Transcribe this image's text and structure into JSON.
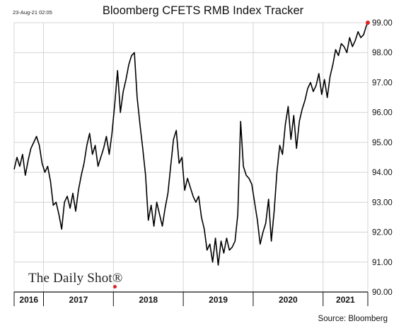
{
  "stamp": "23-Aug-21 02:05",
  "source": "Source: Bloomberg",
  "brand": "The Daily Shot®",
  "colors": {
    "line": "#000000",
    "endpoint": "#e0211f",
    "brand_dot": "#e0211f"
  },
  "chart_data": {
    "type": "line",
    "title": "Bloomberg CFETS RMB Index Tracker",
    "xlabel": "",
    "ylabel": "",
    "ylim": [
      90.0,
      99.0
    ],
    "xlim": [
      2016.58,
      2021.64
    ],
    "yticks": [
      90.0,
      91.0,
      92.0,
      93.0,
      94.0,
      95.0,
      96.0,
      97.0,
      98.0,
      99.0
    ],
    "ytick_labels": [
      "90.00",
      "91.00",
      "92.00",
      "93.00",
      "94.00",
      "95.00",
      "96.00",
      "97.00",
      "98.00",
      "99.00"
    ],
    "xticks": [
      2016.58,
      2017,
      2018,
      2019,
      2020,
      2021,
      2021.64
    ],
    "x_categories": [
      {
        "label": "2016",
        "center": 2016.79
      },
      {
        "label": "2017",
        "center": 2017.5
      },
      {
        "label": "2018",
        "center": 2018.5
      },
      {
        "label": "2019",
        "center": 2019.5
      },
      {
        "label": "2020",
        "center": 2020.5
      },
      {
        "label": "2021",
        "center": 2021.32
      }
    ],
    "grid": true,
    "legend": "none",
    "endpoint": {
      "x": 2021.64,
      "y": 99.0
    },
    "series": [
      {
        "x": [
          2016.58,
          2016.62,
          2016.66,
          2016.7,
          2016.74,
          2016.78,
          2016.82,
          2016.86,
          2016.9,
          2016.94,
          2016.98,
          2017.02,
          2017.06,
          2017.1,
          2017.14,
          2017.18,
          2017.22,
          2017.26,
          2017.3,
          2017.34,
          2017.38,
          2017.42,
          2017.46,
          2017.5,
          2017.54,
          2017.58,
          2017.62,
          2017.66,
          2017.7,
          2017.74,
          2017.78,
          2017.82,
          2017.86,
          2017.9,
          2017.94,
          2017.98,
          2018.02,
          2018.06,
          2018.1,
          2018.14,
          2018.18,
          2018.22,
          2018.26,
          2018.3,
          2018.34,
          2018.38,
          2018.42,
          2018.46,
          2018.5,
          2018.54,
          2018.58,
          2018.62,
          2018.66,
          2018.7,
          2018.74,
          2018.78,
          2018.82,
          2018.86,
          2018.9,
          2018.94,
          2018.98,
          2019.02,
          2019.06,
          2019.1,
          2019.14,
          2019.18,
          2019.22,
          2019.26,
          2019.3,
          2019.34,
          2019.38,
          2019.42,
          2019.46,
          2019.5,
          2019.54,
          2019.58,
          2019.62,
          2019.66,
          2019.7,
          2019.74,
          2019.78,
          2019.82,
          2019.86,
          2019.9,
          2019.94,
          2019.98,
          2020.02,
          2020.06,
          2020.1,
          2020.14,
          2020.18,
          2020.22,
          2020.26,
          2020.3,
          2020.34,
          2020.38,
          2020.42,
          2020.46,
          2020.5,
          2020.54,
          2020.58,
          2020.62,
          2020.66,
          2020.7,
          2020.74,
          2020.78,
          2020.82,
          2020.86,
          2020.9,
          2020.94,
          2020.98,
          2021.02,
          2021.06,
          2021.1,
          2021.14,
          2021.18,
          2021.22,
          2021.26,
          2021.3,
          2021.34,
          2021.38,
          2021.42,
          2021.46,
          2021.5,
          2021.54,
          2021.58,
          2021.62,
          2021.64
        ],
        "values": [
          94.1,
          94.5,
          94.2,
          94.6,
          93.9,
          94.4,
          94.8,
          95.0,
          95.2,
          94.9,
          94.3,
          94.0,
          94.2,
          93.7,
          92.9,
          93.0,
          92.6,
          92.1,
          93.0,
          93.2,
          92.8,
          93.3,
          92.7,
          93.4,
          93.9,
          94.3,
          94.9,
          95.3,
          94.6,
          94.9,
          94.2,
          94.5,
          94.8,
          95.2,
          94.6,
          95.3,
          96.3,
          97.4,
          96.0,
          96.7,
          97.1,
          97.6,
          97.9,
          98.0,
          96.5,
          95.6,
          94.8,
          93.9,
          92.4,
          92.9,
          92.2,
          93.0,
          92.6,
          92.2,
          92.8,
          93.3,
          94.2,
          95.1,
          95.4,
          94.3,
          94.5,
          93.4,
          93.8,
          93.5,
          93.2,
          93.0,
          93.2,
          92.5,
          92.1,
          91.4,
          91.6,
          91.0,
          91.8,
          90.9,
          91.7,
          91.3,
          91.8,
          91.4,
          91.5,
          91.7,
          92.6,
          95.7,
          94.2,
          93.9,
          93.8,
          93.6,
          93.0,
          92.4,
          91.6,
          92.0,
          92.3,
          93.1,
          91.7,
          92.7,
          94.0,
          94.9,
          94.6,
          95.6,
          96.2,
          95.1,
          95.9,
          94.8,
          95.7,
          96.1,
          96.4,
          96.8,
          97.0,
          96.7,
          96.9,
          97.3,
          96.6,
          97.1,
          96.5,
          97.2,
          97.6,
          98.1,
          97.9,
          98.3,
          98.2,
          98.0,
          98.5,
          98.2,
          98.4,
          98.7,
          98.5,
          98.6,
          98.9,
          99.0
        ]
      }
    ]
  }
}
